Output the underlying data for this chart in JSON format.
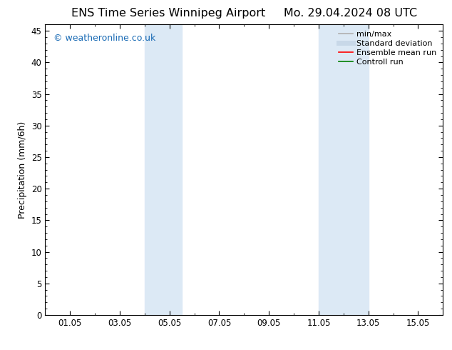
{
  "title_left": "ENS Time Series Winnipeg Airport",
  "title_right": "Mo. 29.04.2024 08 UTC",
  "ylabel": "Precipitation (mm/6h)",
  "xlim": [
    0,
    16
  ],
  "ylim": [
    0,
    46
  ],
  "yticks": [
    0,
    5,
    10,
    15,
    20,
    25,
    30,
    35,
    40,
    45
  ],
  "xtick_labels": [
    "01.05",
    "03.05",
    "05.05",
    "07.05",
    "09.05",
    "11.05",
    "13.05",
    "15.05"
  ],
  "xtick_positions": [
    1,
    3,
    5,
    7,
    9,
    11,
    13,
    15
  ],
  "shaded_bands": [
    {
      "x_start": 4.0,
      "x_end": 5.5
    },
    {
      "x_start": 11.0,
      "x_end": 13.0
    }
  ],
  "shaded_color": "#dce9f5",
  "watermark_text": "© weatheronline.co.uk",
  "watermark_color": "#1a6bb5",
  "legend_items": [
    {
      "label": "min/max",
      "color": "#b0b0b0",
      "lw": 1.2,
      "style": "solid"
    },
    {
      "label": "Standard deviation",
      "color": "#c8d8e8",
      "lw": 5,
      "style": "solid"
    },
    {
      "label": "Ensemble mean run",
      "color": "red",
      "lw": 1.2,
      "style": "solid"
    },
    {
      "label": "Controll run",
      "color": "green",
      "lw": 1.2,
      "style": "solid"
    }
  ],
  "background_color": "#ffffff",
  "title_fontsize": 11.5,
  "axis_label_fontsize": 9,
  "tick_fontsize": 8.5,
  "watermark_fontsize": 9,
  "legend_fontsize": 8
}
